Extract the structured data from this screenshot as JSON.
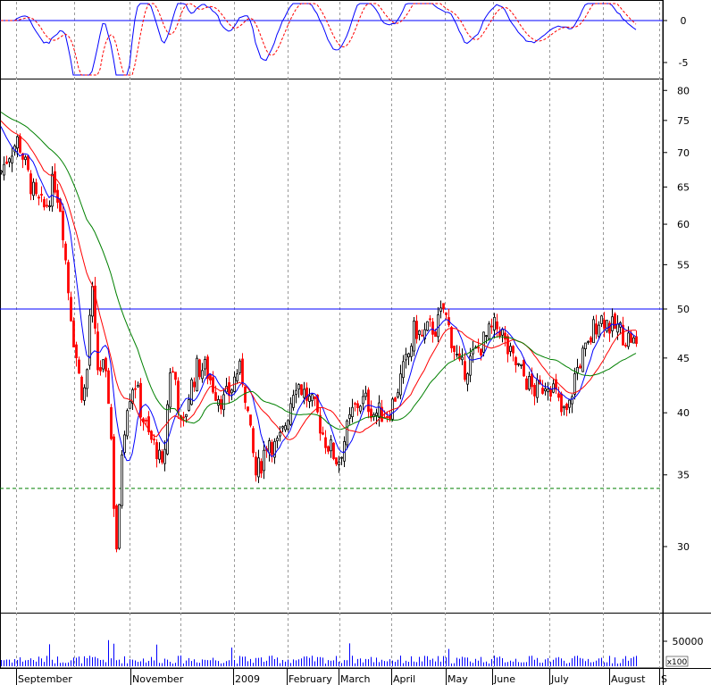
{
  "chart_data": {
    "type": "candlestick",
    "price_axis": {
      "scale": "log",
      "ticks": [
        "80",
        "75",
        "70",
        "65",
        "60",
        "55",
        "50",
        "45",
        "40",
        "35",
        "30"
      ]
    },
    "oscillator_axis": {
      "ticks": [
        "0",
        "-5"
      ]
    },
    "volume_axis": {
      "tick": "50000",
      "unit": "x100"
    },
    "months": [
      "September",
      "November",
      "2009",
      "February",
      "March",
      "April",
      "May",
      "June",
      "July",
      "August",
      "S"
    ],
    "reference_lines": [
      {
        "value": 50,
        "style": "solid",
        "color": "#0000ff"
      },
      {
        "value": 34,
        "style": "dashed",
        "color": "#008000"
      }
    ],
    "moving_averages": [
      {
        "color": "#0000ff"
      },
      {
        "color": "#ff0000"
      },
      {
        "color": "#008000"
      }
    ],
    "up_color": "#000000",
    "down_color": "#ff0000",
    "grid": "vertical-dashed"
  }
}
